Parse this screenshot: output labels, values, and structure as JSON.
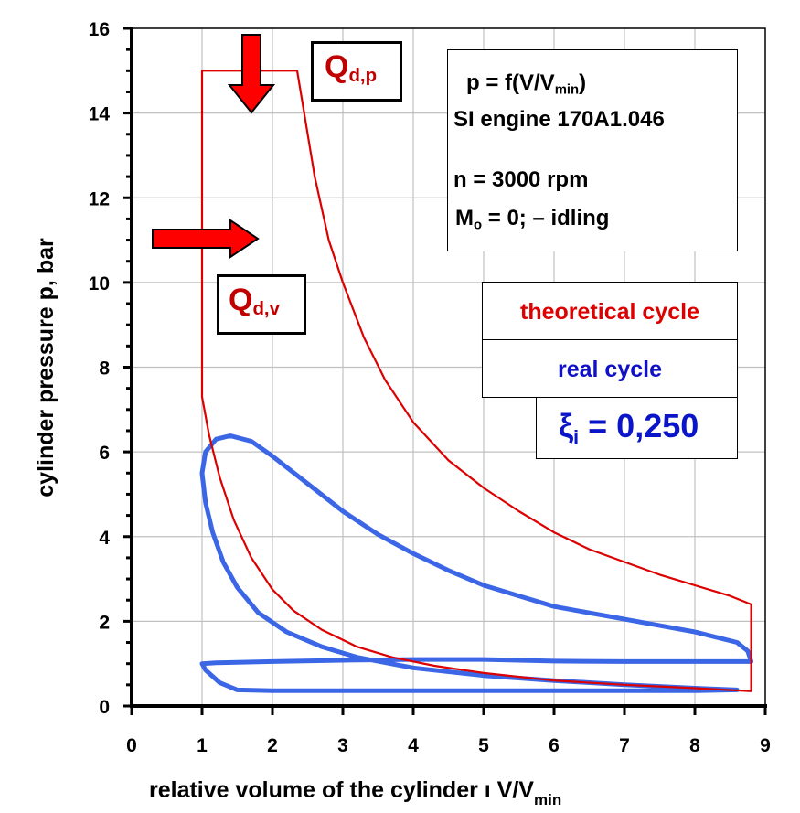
{
  "chart_data": {
    "type": "line",
    "title": "",
    "xlabel": "relative volume of the cylinder ı V/V",
    "xlabel_sub": "min",
    "ylabel": "cylinder pressure p, bar",
    "xlim": [
      0,
      9
    ],
    "ylim": [
      0,
      16
    ],
    "x_ticks": [
      "0",
      "1",
      "2",
      "3",
      "4",
      "5",
      "6",
      "7",
      "8",
      "9"
    ],
    "y_ticks": [
      "0",
      "2",
      "4",
      "6",
      "8",
      "10",
      "12",
      "14",
      "16"
    ],
    "grid": true,
    "series": [
      {
        "name": "theoretical cycle",
        "color": "#dd0000",
        "points": [
          [
            8.8,
            0.35
          ],
          [
            8.8,
            2.4
          ],
          [
            8.5,
            2.6
          ],
          [
            8.0,
            2.85
          ],
          [
            7.5,
            3.1
          ],
          [
            7.0,
            3.4
          ],
          [
            6.5,
            3.7
          ],
          [
            6.0,
            4.1
          ],
          [
            5.5,
            4.6
          ],
          [
            5.0,
            5.15
          ],
          [
            4.5,
            5.8
          ],
          [
            4.0,
            6.7
          ],
          [
            3.6,
            7.7
          ],
          [
            3.3,
            8.7
          ],
          [
            3.0,
            10.0
          ],
          [
            2.8,
            11.0
          ],
          [
            2.6,
            12.5
          ],
          [
            2.45,
            14.0
          ],
          [
            2.35,
            15.0
          ],
          [
            1.0,
            15.0
          ],
          [
            1.0,
            7.3
          ],
          [
            1.1,
            6.4
          ],
          [
            1.25,
            5.4
          ],
          [
            1.45,
            4.4
          ],
          [
            1.7,
            3.5
          ],
          [
            2.0,
            2.75
          ],
          [
            2.3,
            2.25
          ],
          [
            2.7,
            1.8
          ],
          [
            3.2,
            1.4
          ],
          [
            3.7,
            1.15
          ],
          [
            4.3,
            0.95
          ],
          [
            5.0,
            0.78
          ],
          [
            6.0,
            0.6
          ],
          [
            7.0,
            0.5
          ],
          [
            8.0,
            0.42
          ],
          [
            8.8,
            0.35
          ]
        ]
      },
      {
        "name": "real cycle",
        "color": "#3b66e6",
        "points": [
          [
            8.8,
            1.05
          ],
          [
            8.75,
            1.3
          ],
          [
            8.6,
            1.5
          ],
          [
            8.0,
            1.75
          ],
          [
            7.0,
            2.05
          ],
          [
            6.0,
            2.35
          ],
          [
            5.5,
            2.6
          ],
          [
            5.0,
            2.85
          ],
          [
            4.5,
            3.2
          ],
          [
            4.0,
            3.6
          ],
          [
            3.5,
            4.05
          ],
          [
            3.0,
            4.6
          ],
          [
            2.5,
            5.25
          ],
          [
            2.0,
            5.9
          ],
          [
            1.7,
            6.25
          ],
          [
            1.4,
            6.38
          ],
          [
            1.2,
            6.3
          ],
          [
            1.05,
            6.0
          ],
          [
            1.0,
            5.5
          ],
          [
            1.05,
            4.8
          ],
          [
            1.15,
            4.1
          ],
          [
            1.3,
            3.4
          ],
          [
            1.5,
            2.8
          ],
          [
            1.8,
            2.2
          ],
          [
            2.2,
            1.75
          ],
          [
            2.7,
            1.4
          ],
          [
            3.2,
            1.15
          ],
          [
            4.0,
            0.9
          ],
          [
            5.0,
            0.72
          ],
          [
            6.0,
            0.6
          ],
          [
            7.0,
            0.5
          ],
          [
            8.0,
            0.42
          ],
          [
            8.6,
            0.38
          ],
          [
            8.0,
            0.36
          ],
          [
            5.0,
            0.36
          ],
          [
            2.0,
            0.36
          ],
          [
            1.5,
            0.38
          ],
          [
            1.25,
            0.55
          ],
          [
            1.05,
            0.85
          ],
          [
            1.0,
            1.0
          ],
          [
            1.2,
            1.02
          ],
          [
            2.0,
            1.05
          ],
          [
            3.0,
            1.08
          ],
          [
            4.0,
            1.1
          ],
          [
            5.0,
            1.1
          ],
          [
            6.0,
            1.06
          ],
          [
            7.0,
            1.05
          ],
          [
            8.0,
            1.05
          ],
          [
            8.8,
            1.05
          ]
        ]
      }
    ],
    "legend": {
      "placement": "right",
      "entries": [
        "theoretical cycle",
        "real cycle"
      ]
    },
    "annotations": {
      "info": {
        "line1": "p = f(V/V",
        "line1_sub": "min",
        "line1_end": ")",
        "line2": "SI engine 170A1.046",
        "line3": "n  = 3000 rpm",
        "line4_pre": " M",
        "line4_sub": "o",
        "line4_post": " = 0;  – idling"
      },
      "efficiency": {
        "symbol": "ξ",
        "sub": "i",
        "value": " = 0,250",
        "color": "#0a14c8"
      },
      "heat_constant_volume": {
        "main": "Q",
        "sub": "d,v",
        "color": "#c00000",
        "arrow": "right-arrow"
      },
      "heat_constant_pressure": {
        "main": "Q",
        "sub": "d,p",
        "color": "#c00000",
        "arrow": "down-arrow"
      }
    },
    "colors": {
      "theoretical": "#dd0000",
      "real": "#3b66e6",
      "real_label": "#1010c8",
      "arrow_fill": "#ff0000"
    }
  }
}
